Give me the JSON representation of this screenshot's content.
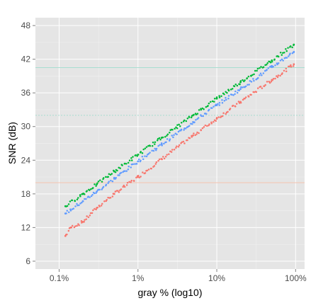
{
  "chart_data": {
    "type": "scatter",
    "xlabel": "gray % (log10)",
    "ylabel": "SNR (dB)",
    "x_scale": "log10",
    "xlim": [
      0.05,
      130
    ],
    "ylim": [
      4.6,
      49.4
    ],
    "x_ticks": [
      {
        "value": 0.1,
        "label": "0.1%"
      },
      {
        "value": 1,
        "label": "1%"
      },
      {
        "value": 10,
        "label": "10%"
      },
      {
        "value": 100,
        "label": "100%"
      }
    ],
    "y_ticks": [
      6,
      12,
      18,
      24,
      30,
      36,
      42,
      48
    ],
    "grid": true,
    "panel_background": "#e5e5e5",
    "grid_color": "#ffffff",
    "reference_lines": [
      {
        "y": 40.5,
        "color": "#a8ddd0",
        "style": "solid"
      },
      {
        "y": 32.0,
        "color": "#a8ddd0",
        "style": "dotted"
      },
      {
        "y": 20.0,
        "color": "#f5c2b0",
        "style": "solid"
      }
    ],
    "series": [
      {
        "color": "#f8766d",
        "points": [
          [
            0.12,
            10.5
          ],
          [
            0.14,
            12.0
          ],
          [
            0.2,
            13.0
          ],
          [
            0.3,
            15.5
          ],
          [
            0.5,
            18.0
          ],
          [
            1.0,
            21.0
          ],
          [
            2.0,
            24.2
          ],
          [
            5.0,
            28.4
          ],
          [
            10.0,
            31.4
          ],
          [
            20.0,
            34.4
          ],
          [
            50.0,
            38.3
          ],
          [
            95.0,
            41.1
          ]
        ]
      },
      {
        "color": "#619cff",
        "points": [
          [
            0.12,
            14.5
          ],
          [
            0.2,
            16.7
          ],
          [
            0.3,
            18.4
          ],
          [
            0.5,
            20.7
          ],
          [
            1.0,
            23.8
          ],
          [
            2.0,
            26.8
          ],
          [
            5.0,
            30.8
          ],
          [
            10.0,
            33.8
          ],
          [
            20.0,
            36.7
          ],
          [
            50.0,
            40.6
          ],
          [
            95.0,
            43.3
          ]
        ]
      },
      {
        "color": "#00ba38",
        "points": [
          [
            0.12,
            15.8
          ],
          [
            0.2,
            18.0
          ],
          [
            0.3,
            19.7
          ],
          [
            0.5,
            22.0
          ],
          [
            1.0,
            25.0
          ],
          [
            2.0,
            28.0
          ],
          [
            5.0,
            32.0
          ],
          [
            10.0,
            35.0
          ],
          [
            20.0,
            37.9
          ],
          [
            50.0,
            41.8
          ],
          [
            95.0,
            44.6
          ]
        ]
      }
    ]
  }
}
